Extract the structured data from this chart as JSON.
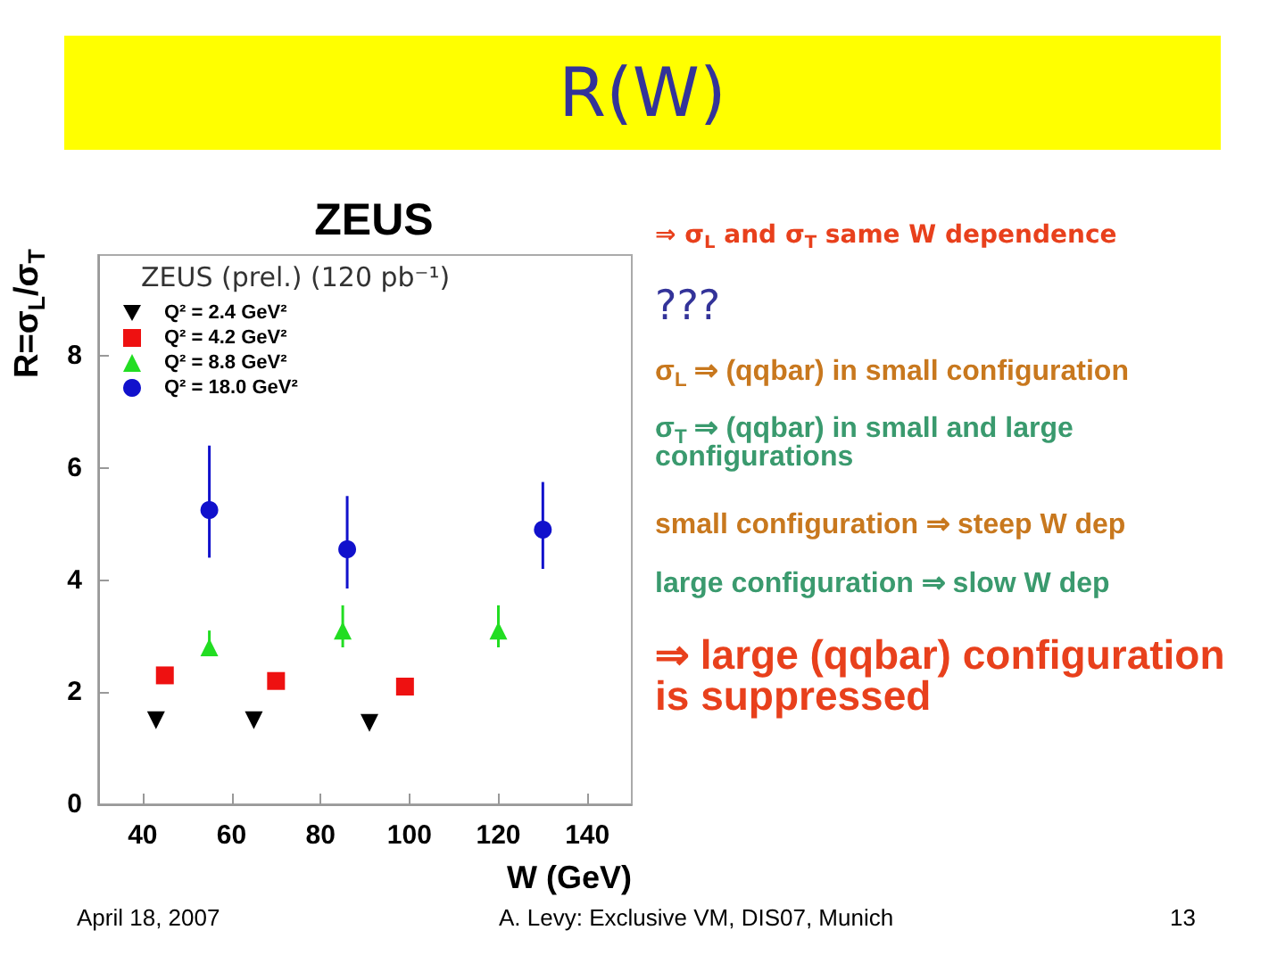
{
  "chart_data": {
    "type": "scatter",
    "title": "R(W)",
    "subtitle": "ZEUS",
    "xlabel": "W (GeV)",
    "ylabel": "R=σ$_{L}$/σ$_{T}$",
    "legend_title": "ZEUS (prel.) (120 pb⁻¹)",
    "xlim": [
      30,
      150
    ],
    "xticks": [
      40,
      60,
      80,
      100,
      120,
      140
    ],
    "ylim": [
      0,
      9.8
    ],
    "yticks": [
      0,
      2,
      4,
      6,
      8
    ],
    "grid": false,
    "legend": "top left",
    "series": [
      {
        "name": "Q² = 2.4 GeV²",
        "color": "#000000",
        "marker": "triangle-down",
        "x": [
          43,
          65,
          91
        ],
        "values": [
          1.5,
          1.5,
          1.45
        ]
      },
      {
        "name": "Q² = 4.2 GeV²",
        "color": "#ee1111",
        "marker": "square",
        "x": [
          45,
          70,
          99
        ],
        "values": [
          2.3,
          2.2,
          2.1
        ]
      },
      {
        "name": "Q² = 8.8 GeV²",
        "color": "#22dd22",
        "marker": "triangle",
        "x": [
          55,
          85,
          120
        ],
        "values": [
          2.8,
          3.1,
          3.1
        ],
        "errors": [
          [
            2.65,
            3.1
          ],
          [
            2.8,
            3.55
          ],
          [
            2.8,
            3.55
          ]
        ]
      },
      {
        "name": "Q² = 18.0 GeV²",
        "color": "#1111cc",
        "marker": "circle",
        "x": [
          55,
          86,
          130
        ],
        "values": [
          5.25,
          4.55,
          4.9
        ],
        "errors": [
          [
            4.4,
            6.4
          ],
          [
            3.85,
            5.5
          ],
          [
            4.2,
            5.75
          ]
        ]
      }
    ],
    "annotations": [
      "⇒ σ$_{L}$ and σ$_{T}$ same W dependence",
      "???",
      "σ$_{L}$ ⇒ (qqbar) in small configuration",
      "σ$_{T}$ ⇒ (qqbar) in small and large configurations",
      "small configuration ⇒ steep W dep",
      "large configuration ⇒ slow W dep",
      "⇒ large (qqbar) configuration is suppressed",
      "April 18, 2007",
      "A. Levy: Exclusive VM, DIS07, Munich",
      "13"
    ]
  }
}
